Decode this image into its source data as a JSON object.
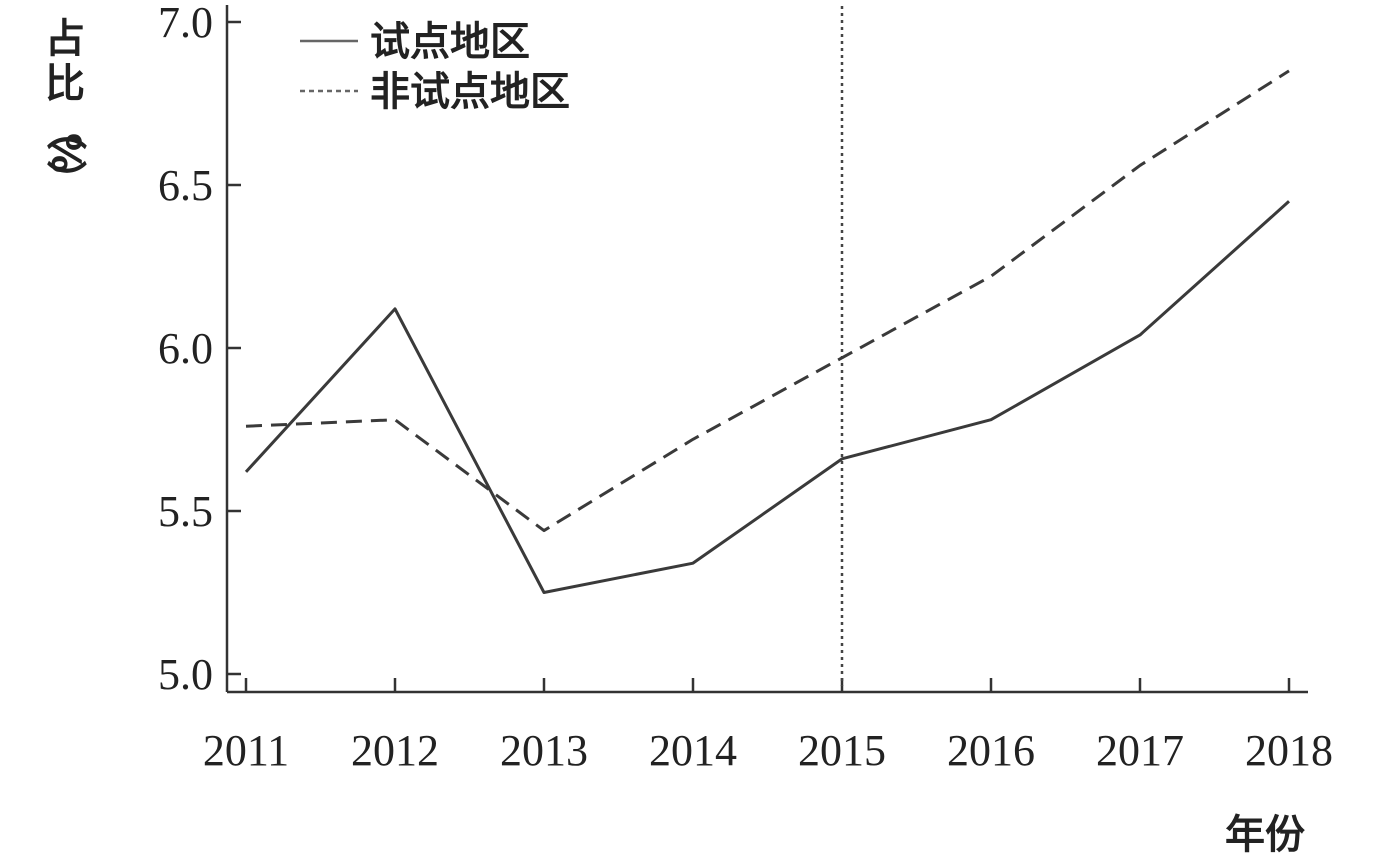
{
  "chart_data": {
    "type": "line",
    "title": "",
    "xlabel": "年份",
    "ylabel_chars": [
      "占",
      "比",
      "（",
      "%",
      "）"
    ],
    "x": [
      "2011",
      "2012",
      "2013",
      "2014",
      "2015",
      "2016",
      "2017",
      "2018"
    ],
    "ylim": [
      5.0,
      7.0
    ],
    "yticks": [
      "5.0",
      "5.5",
      "6.0",
      "6.5",
      "7.0"
    ],
    "ytick_values": [
      5.0,
      5.5,
      6.0,
      6.5,
      7.0
    ],
    "grid": false,
    "legend_position": "top-left",
    "reference_line": {
      "x": "2015",
      "style": "dotted"
    },
    "series": [
      {
        "name": "试点地区",
        "style": "solid",
        "color": "#3a3a3a",
        "values": [
          5.62,
          6.12,
          5.25,
          5.34,
          5.66,
          5.78,
          6.04,
          6.45
        ]
      },
      {
        "name": "非试点地区",
        "style": "dashed",
        "color": "#3a3a3a",
        "values": [
          5.76,
          5.78,
          5.44,
          5.72,
          5.97,
          6.22,
          6.56,
          6.85
        ]
      }
    ]
  }
}
